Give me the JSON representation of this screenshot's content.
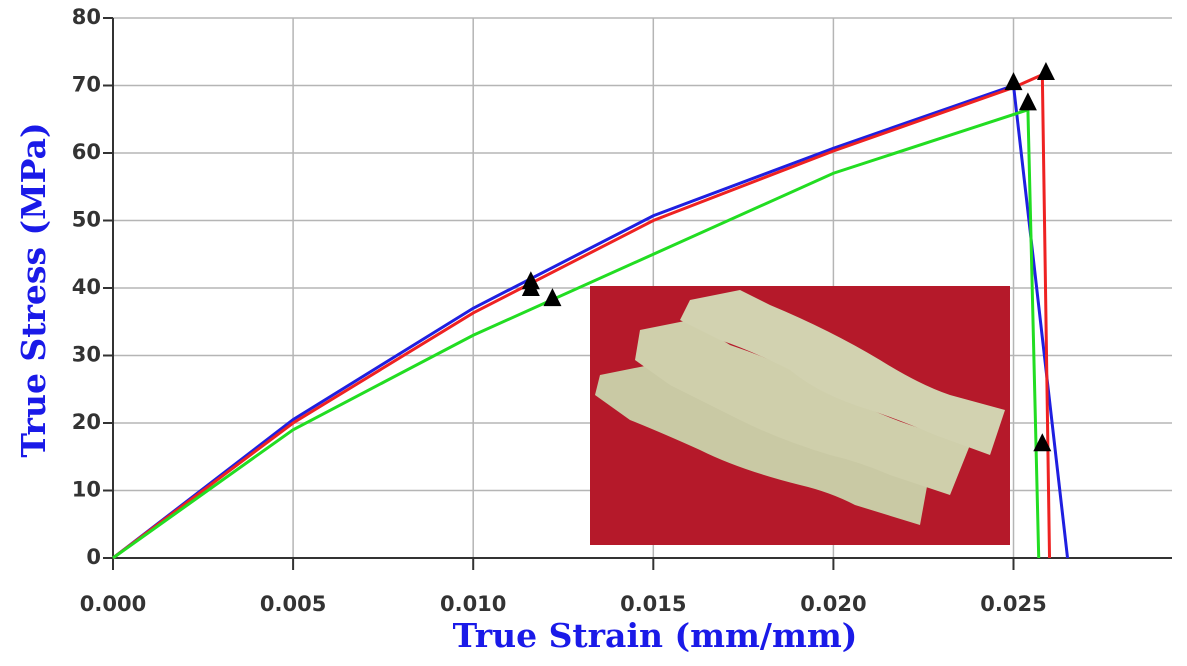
{
  "chart_data": {
    "type": "line",
    "x_label": "True Strain (mm/mm)",
    "y_label": "True Stress (MPa)",
    "xlim": [
      0,
      0.0294
    ],
    "ylim": [
      0,
      80
    ],
    "xticks": [
      {
        "value": 0,
        "label": "0.000"
      },
      {
        "value": 0.005,
        "label": "0.005"
      },
      {
        "value": 0.01,
        "label": "0.010"
      },
      {
        "value": 0.015,
        "label": "0.015"
      },
      {
        "value": 0.02,
        "label": "0.020"
      },
      {
        "value": 0.025,
        "label": "0.025"
      }
    ],
    "yticks": [
      0,
      10,
      20,
      30,
      40,
      50,
      60,
      70,
      80
    ],
    "grid": true,
    "marker_color": "#000000",
    "series": [
      {
        "color": "#1f1fe0",
        "x": [
          0,
          0.005,
          0.01,
          0.015,
          0.02,
          0.025,
          0.0265
        ],
        "values": [
          0,
          20.5,
          37,
          50.7,
          60.7,
          70,
          0
        ],
        "marker_x": [
          0.0116,
          0.025
        ],
        "marker_values": [
          41,
          70.5
        ]
      },
      {
        "color": "#ee2222",
        "x": [
          0,
          0.005,
          0.01,
          0.015,
          0.02,
          0.025,
          0.0258,
          0.026
        ],
        "values": [
          0,
          20,
          36.3,
          50,
          60.3,
          69.7,
          71.6,
          0
        ],
        "marker_x": [
          0.0116,
          0.0259
        ],
        "marker_values": [
          40,
          72
        ]
      },
      {
        "color": "#22dd22",
        "x": [
          0,
          0.005,
          0.01,
          0.015,
          0.02,
          0.0254,
          0.0257
        ],
        "values": [
          0,
          19,
          33,
          45,
          57,
          66.4,
          0
        ],
        "marker_x": [
          0.0122,
          0.0254,
          0.0258
        ],
        "marker_values": [
          38.5,
          67.5,
          17
        ]
      }
    ]
  }
}
